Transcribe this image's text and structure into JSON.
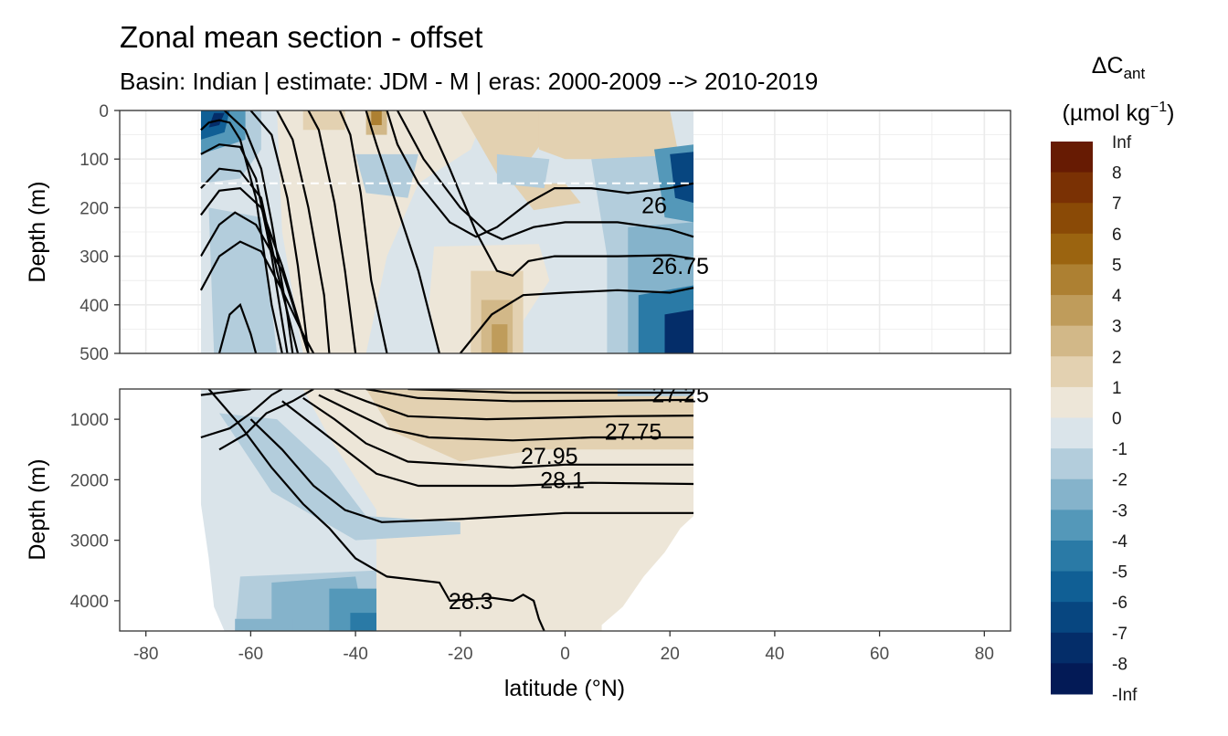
{
  "chart_data": {
    "type": "heatmap",
    "title": "Zonal mean section - offset",
    "subtitle": "Basin: Indian | estimate: JDM - M | eras: 2000-2009 --> 2010-2019",
    "xlabel": "latitude (°N)",
    "ylabel": "Depth (m)",
    "xlim": [
      -85,
      85
    ],
    "x_ticks": [
      "-80",
      "-60",
      "-40",
      "-20",
      "0",
      "20",
      "40",
      "60",
      "80"
    ],
    "panels": [
      {
        "name": "upper",
        "ylim": [
          0,
          500
        ],
        "y_ticks": [
          "0",
          "100",
          "200",
          "300",
          "400",
          "500"
        ]
      },
      {
        "name": "lower",
        "ylim": [
          500,
          4500
        ],
        "y_ticks": [
          "1000",
          "2000",
          "3000",
          "4000"
        ]
      }
    ],
    "data_extent_lat": [
      -69.5,
      24.5
    ],
    "dashed_line_depth": 150,
    "legend": {
      "title_main": "ΔC",
      "title_sub": "ant",
      "unit_pre": "(µmol kg",
      "unit_sup": "−1",
      "unit_post": ")",
      "position": "right",
      "labels": [
        "Inf",
        "8",
        "7",
        "6",
        "5",
        "4",
        "3",
        "2",
        "1",
        "0",
        "-1",
        "-2",
        "-3",
        "-4",
        "-5",
        "-6",
        "-7",
        "-8",
        "-Inf"
      ],
      "colors": [
        "#671b03",
        "#7a3104",
        "#8a4a06",
        "#9b6410",
        "#ad8032",
        "#bf9c5b",
        "#d2b888",
        "#e3d1b1",
        "#ede6d8",
        "#dae4ea",
        "#b3cddc",
        "#85b3cb",
        "#5498b9",
        "#2a7aa6",
        "#105f95",
        "#074680",
        "#042d69",
        "#031a56"
      ]
    },
    "contour_labels": [
      {
        "text": "26",
        "lat": 17,
        "depth": 195
      },
      {
        "text": "26.75",
        "lat": 22,
        "depth": 320
      },
      {
        "text": "27.25",
        "lat": 22,
        "depth": 580
      },
      {
        "text": "27.75",
        "lat": 13,
        "depth": 1200
      },
      {
        "text": "27.95",
        "lat": -3,
        "depth": 1600
      },
      {
        "text": "28.1",
        "lat": -0.5,
        "depth": 2000
      },
      {
        "text": "28.3",
        "lat": -18,
        "depth": 4000
      }
    ],
    "grid": true
  }
}
